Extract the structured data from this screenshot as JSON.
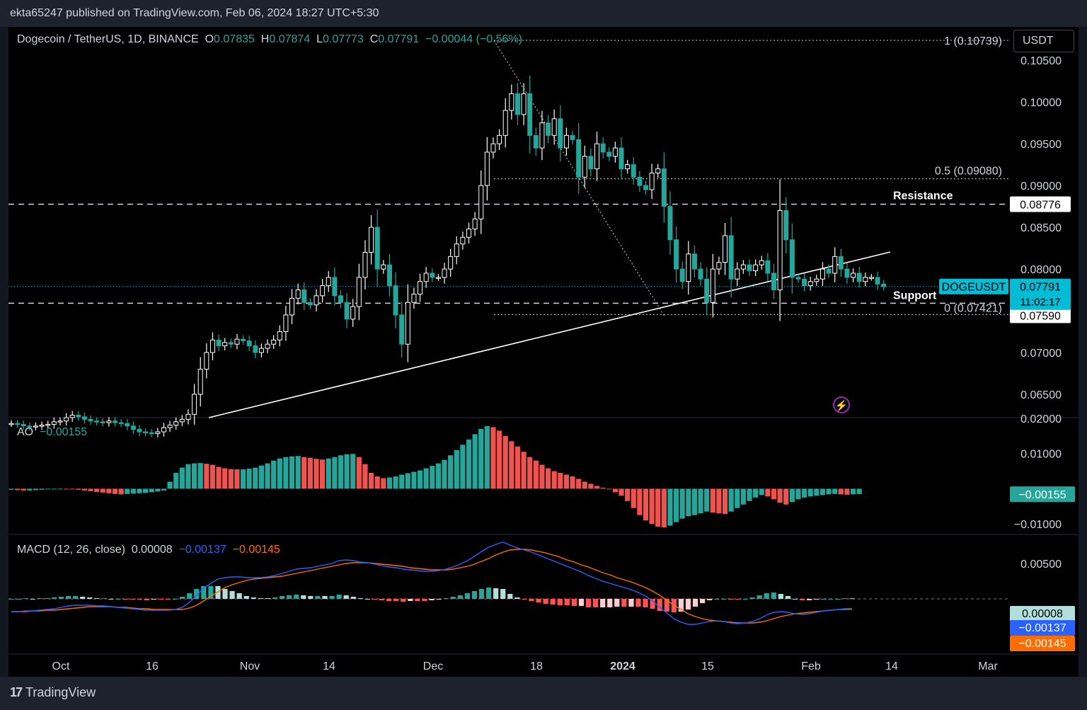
{
  "header": {
    "publisher_line": "ekta65247 published on TradingView.com, Feb 06, 2024 18:27 UTC+5:30"
  },
  "legend": {
    "symbol": "Dogecoin / TetherUS, 1D, BINANCE",
    "o_label": "O",
    "o_value": "0.07835",
    "h_label": "H",
    "h_value": "0.07874",
    "l_label": "L",
    "l_value": "0.07773",
    "c_label": "C",
    "c_value": "0.07791",
    "change": "−0.00044 (−0.56%)"
  },
  "currency_button": "USDT",
  "colors": {
    "up": "#26a69a",
    "down": "#ef5350",
    "background": "#000000",
    "price_tag": "#00bcd4",
    "macd_line": "#2962ff",
    "signal_line": "#ff6d00"
  },
  "chart_data": [
    {
      "type": "candlestick",
      "title": "Dogecoin / TetherUS, 1D, BINANCE",
      "y_ticks": [
        "0.10500",
        "0.10000",
        "0.09500",
        "0.09000",
        "0.08500",
        "0.08000",
        "0.07000",
        "0.06500"
      ],
      "ylim": [
        0.0622,
        0.109
      ],
      "x_ticks": [
        "Oct",
        "16",
        "Nov",
        "14",
        "Dec",
        "18",
        "2024",
        "15",
        "Feb",
        "14",
        "Mar"
      ],
      "ohlc_close_series": [
        0.0615,
        0.0614,
        0.0612,
        0.0611,
        0.0612,
        0.0613,
        0.0614,
        0.0617,
        0.0618,
        0.0622,
        0.0625,
        0.0623,
        0.062,
        0.0618,
        0.0617,
        0.0616,
        0.0618,
        0.0616,
        0.0615,
        0.0612,
        0.0608,
        0.0605,
        0.0604,
        0.0603,
        0.0605,
        0.061,
        0.0613,
        0.0617,
        0.062,
        0.0626,
        0.065,
        0.068,
        0.07,
        0.0715,
        0.0708,
        0.0712,
        0.071,
        0.0716,
        0.0714,
        0.0708,
        0.07,
        0.0705,
        0.071,
        0.0715,
        0.0725,
        0.0745,
        0.0765,
        0.0775,
        0.076,
        0.0757,
        0.0768,
        0.078,
        0.079,
        0.0768,
        0.076,
        0.074,
        0.0755,
        0.079,
        0.082,
        0.085,
        0.08,
        0.0805,
        0.078,
        0.0745,
        0.071,
        0.076,
        0.077,
        0.0785,
        0.0795,
        0.079,
        0.079,
        0.08,
        0.0815,
        0.083,
        0.0838,
        0.0848,
        0.086,
        0.09,
        0.094,
        0.095,
        0.096,
        0.099,
        0.101,
        0.0985,
        0.101,
        0.096,
        0.0945,
        0.0975,
        0.096,
        0.098,
        0.0945,
        0.096,
        0.0955,
        0.091,
        0.0935,
        0.092,
        0.095,
        0.094,
        0.0935,
        0.0945,
        0.092,
        0.0925,
        0.091,
        0.09,
        0.0895,
        0.0915,
        0.092,
        0.0875,
        0.0835,
        0.08,
        0.0785,
        0.0818,
        0.08,
        0.0788,
        0.076,
        0.08,
        0.0808,
        0.084,
        0.0788,
        0.08,
        0.0805,
        0.0798,
        0.0805,
        0.081,
        0.0795,
        0.0775,
        0.087,
        0.0835,
        0.079,
        0.0788,
        0.078,
        0.0785,
        0.0788,
        0.08,
        0.0795,
        0.0815,
        0.08,
        0.079,
        0.0795,
        0.0785,
        0.079,
        0.079,
        0.0782,
        0.0779
      ],
      "annotations": {
        "fib_1": "1 (0.10739)",
        "fib_05": "0.5 (0.09080)",
        "fib_0": "0 (0.07421)",
        "resistance_label": "Resistance",
        "resistance_value": "0.08776",
        "support_label": "Support",
        "support_value": "0.07590",
        "symbol_tag": "DOGEUSDT",
        "last_price": "0.07791",
        "countdown": "11:02:17"
      }
    },
    {
      "type": "histogram",
      "title": "AO",
      "current_value": "−0.00155",
      "y_ticks": [
        "0.02000",
        "0.01000",
        "−0.01000"
      ],
      "ylim": [
        -0.013,
        0.02
      ],
      "values": [
        -0.0003,
        -0.0004,
        -0.0005,
        -0.0005,
        -0.0004,
        -0.0003,
        -0.0002,
        -0.0001,
        0.0,
        -0.0001,
        -0.0002,
        -0.0003,
        -0.0005,
        -0.0007,
        -0.0009,
        -0.0011,
        -0.0013,
        -0.0015,
        -0.0016,
        -0.0015,
        -0.0014,
        -0.0013,
        -0.0012,
        -0.001,
        -0.0008,
        -0.0005,
        0.002,
        0.0045,
        0.006,
        0.007,
        0.0072,
        0.0073,
        0.0071,
        0.0068,
        0.0062,
        0.0058,
        0.0056,
        0.0055,
        0.0055,
        0.0057,
        0.006,
        0.0066,
        0.0072,
        0.008,
        0.0086,
        0.009,
        0.0092,
        0.0093,
        0.009,
        0.0088,
        0.0085,
        0.0083,
        0.0086,
        0.009,
        0.0095,
        0.0098,
        0.0099,
        0.009,
        0.007,
        0.0045,
        0.0035,
        0.003,
        0.0032,
        0.0035,
        0.004,
        0.0044,
        0.0048,
        0.0052,
        0.0058,
        0.0065,
        0.0072,
        0.0082,
        0.0095,
        0.011,
        0.0125,
        0.014,
        0.0155,
        0.017,
        0.0178,
        0.0175,
        0.0165,
        0.015,
        0.0135,
        0.012,
        0.0105,
        0.009,
        0.008,
        0.0068,
        0.0058,
        0.005,
        0.0045,
        0.004,
        0.0035,
        0.0028,
        0.002,
        0.0014,
        0.0008,
        0.0003,
        -0.0002,
        -0.001,
        -0.002,
        -0.0035,
        -0.0055,
        -0.0075,
        -0.009,
        -0.01,
        -0.0108,
        -0.011,
        -0.0105,
        -0.0095,
        -0.0085,
        -0.0078,
        -0.0075,
        -0.007,
        -0.0065,
        -0.0068,
        -0.007,
        -0.0072,
        -0.0065,
        -0.0055,
        -0.0045,
        -0.0035,
        -0.0025,
        -0.0018,
        -0.0022,
        -0.003,
        -0.004,
        -0.0045,
        -0.0038,
        -0.003,
        -0.0025,
        -0.0022,
        -0.002,
        -0.0018,
        -0.0016,
        -0.0015,
        -0.0016,
        -0.0017,
        -0.0016,
        -0.00155
      ]
    },
    {
      "type": "macd",
      "title": "MACD (12, 26, close)",
      "hist_value": "0.00008",
      "macd_value": "−0.00137",
      "signal_value": "−0.00145",
      "y_ticks": [
        "0.00500"
      ],
      "ylim": [
        -0.006,
        0.009
      ],
      "macd": [
        -0.0018,
        -0.0018,
        -0.0017,
        -0.0017,
        -0.0016,
        -0.0015,
        -0.0014,
        -0.0012,
        -0.001,
        -0.0009,
        -0.0009,
        -0.0009,
        -0.001,
        -0.001,
        -0.0011,
        -0.0012,
        -0.0013,
        -0.0014,
        -0.0015,
        -0.0016,
        -0.0016,
        -0.0016,
        -0.0016,
        -0.0015,
        -0.0012,
        -0.0005,
        0.0005,
        0.0015,
        0.0022,
        0.0028,
        0.003,
        0.0031,
        0.0031,
        0.003,
        0.003,
        0.003,
        0.0031,
        0.0033,
        0.0036,
        0.0039,
        0.0042,
        0.0043,
        0.0044,
        0.0046,
        0.0048,
        0.005,
        0.0054,
        0.0055,
        0.0054,
        0.0052,
        0.0051,
        0.0049,
        0.0047,
        0.0045,
        0.0044,
        0.0042,
        0.0041,
        0.004,
        0.0039,
        0.0039,
        0.004,
        0.0042,
        0.0045,
        0.0049,
        0.0054,
        0.006,
        0.0067,
        0.0073,
        0.0077,
        0.008,
        0.0076,
        0.0072,
        0.0069,
        0.0066,
        0.0062,
        0.0058,
        0.0054,
        0.005,
        0.0046,
        0.0042,
        0.0038,
        0.0033,
        0.0029,
        0.0025,
        0.0022,
        0.0019,
        0.0016,
        0.0013,
        0.0009,
        0.0004,
        -0.0003,
        -0.0012,
        -0.002,
        -0.0028,
        -0.0033,
        -0.0036,
        -0.0036,
        -0.0034,
        -0.0032,
        -0.0031,
        -0.0032,
        -0.0034,
        -0.0035,
        -0.0034,
        -0.0032,
        -0.0028,
        -0.0023,
        -0.0019,
        -0.0018,
        -0.0019,
        -0.0021,
        -0.0022,
        -0.0021,
        -0.0019,
        -0.0017,
        -0.0016,
        -0.0015,
        -0.0014,
        -0.00137
      ],
      "signal": [
        -0.0018,
        -0.0018,
        -0.0018,
        -0.0017,
        -0.0017,
        -0.0016,
        -0.0016,
        -0.0015,
        -0.0014,
        -0.0013,
        -0.0012,
        -0.0011,
        -0.0011,
        -0.0011,
        -0.0011,
        -0.0012,
        -0.0012,
        -0.0013,
        -0.0014,
        -0.0014,
        -0.0015,
        -0.0015,
        -0.0015,
        -0.0015,
        -0.0015,
        -0.0013,
        -0.0009,
        -0.0003,
        0.0004,
        0.001,
        0.0016,
        0.002,
        0.0023,
        0.0026,
        0.0028,
        0.0029,
        0.003,
        0.0031,
        0.0032,
        0.0034,
        0.0036,
        0.0038,
        0.004,
        0.0042,
        0.0044,
        0.0046,
        0.0048,
        0.005,
        0.0051,
        0.0051,
        0.0051,
        0.005,
        0.0049,
        0.0048,
        0.0047,
        0.0046,
        0.0044,
        0.0043,
        0.0042,
        0.0041,
        0.0041,
        0.0041,
        0.0042,
        0.0044,
        0.0046,
        0.0049,
        0.0053,
        0.0057,
        0.0062,
        0.0066,
        0.0069,
        0.007,
        0.007,
        0.0069,
        0.0067,
        0.0065,
        0.0062,
        0.0059,
        0.0055,
        0.0052,
        0.0048,
        0.0045,
        0.0041,
        0.0037,
        0.0034,
        0.003,
        0.0027,
        0.0024,
        0.002,
        0.0016,
        0.0011,
        0.0005,
        -0.0002,
        -0.0009,
        -0.0015,
        -0.0021,
        -0.0025,
        -0.0028,
        -0.003,
        -0.0031,
        -0.0032,
        -0.0033,
        -0.0034,
        -0.0034,
        -0.0034,
        -0.0033,
        -0.0031,
        -0.0028,
        -0.0025,
        -0.0023,
        -0.0021,
        -0.002,
        -0.0019,
        -0.0018,
        -0.0017,
        -0.0016,
        -0.0015,
        -0.0015,
        -0.00145
      ]
    }
  ],
  "panels": {
    "ao_title": "AO",
    "ao_value": "−0.00155",
    "macd_title": "MACD (12, 26, close)",
    "macd_hist": "0.00008",
    "macd_line": "−0.00137",
    "macd_signal": "−0.00145"
  },
  "footer": {
    "brand": "TradingView"
  }
}
